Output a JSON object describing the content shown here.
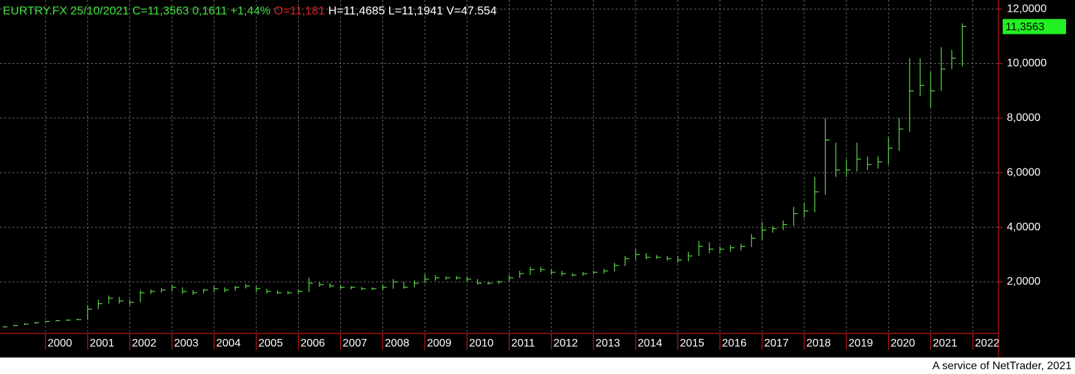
{
  "chart_data": {
    "type": "ohlc",
    "header": [
      {
        "text": "EURTRY.FX 25/10/2021 C=11,3563 0,1611 +1,44%",
        "color": "#3ee03e"
      },
      {
        "text": "O=11,181",
        "color": "#e41e1e"
      },
      {
        "text": "H=11,4685 L=11,1941 V=47.554",
        "color": "#ffffff"
      }
    ],
    "last_price": {
      "value": 11.3563,
      "label": "11,3563"
    },
    "footer": "A service of NetTrader, 2021",
    "color": "#5fe04a",
    "grid": true,
    "xlim": [
      1998.92,
      2022.61
    ],
    "xticks": [
      2000,
      2001,
      2002,
      2003,
      2004,
      2005,
      2006,
      2007,
      2008,
      2009,
      2010,
      2011,
      2012,
      2013,
      2014,
      2015,
      2016,
      2017,
      2018,
      2019,
      2020,
      2021,
      2022
    ],
    "ylim": [
      0.11,
      12.33
    ],
    "yticks": [
      {
        "value": 2,
        "label": "2,0000"
      },
      {
        "value": 4,
        "label": "4,0000"
      },
      {
        "value": 6,
        "label": "6,0000"
      },
      {
        "value": 8,
        "label": "8,0000"
      },
      {
        "value": 10,
        "label": "10,0000"
      },
      {
        "value": 12,
        "label": "12,0000"
      }
    ],
    "x": [
      1999.0,
      1999.25,
      1999.5,
      1999.75,
      2000.0,
      2000.25,
      2000.5,
      2000.75,
      2001.0,
      2001.25,
      2001.5,
      2001.75,
      2002.0,
      2002.25,
      2002.5,
      2002.75,
      2003.0,
      2003.25,
      2003.5,
      2003.75,
      2004.0,
      2004.25,
      2004.5,
      2004.75,
      2005.0,
      2005.25,
      2005.5,
      2005.75,
      2006.0,
      2006.25,
      2006.5,
      2006.75,
      2007.0,
      2007.25,
      2007.5,
      2007.75,
      2008.0,
      2008.25,
      2008.5,
      2008.75,
      2009.0,
      2009.25,
      2009.5,
      2009.75,
      2010.0,
      2010.25,
      2010.5,
      2010.75,
      2011.0,
      2011.25,
      2011.5,
      2011.75,
      2012.0,
      2012.25,
      2012.5,
      2012.75,
      2013.0,
      2013.25,
      2013.5,
      2013.75,
      2014.0,
      2014.25,
      2014.5,
      2014.75,
      2015.0,
      2015.25,
      2015.5,
      2015.75,
      2016.0,
      2016.25,
      2016.5,
      2016.75,
      2017.0,
      2017.25,
      2017.5,
      2017.75,
      2018.0,
      2018.25,
      2018.5,
      2018.75,
      2019.0,
      2019.25,
      2019.5,
      2019.75,
      2020.0,
      2020.25,
      2020.5,
      2020.75,
      2021.0,
      2021.25,
      2021.5,
      2021.75
    ],
    "close": [
      0.35,
      0.4,
      0.45,
      0.5,
      0.55,
      0.58,
      0.6,
      0.62,
      1.0,
      1.2,
      1.4,
      1.3,
      1.25,
      1.6,
      1.65,
      1.7,
      1.8,
      1.65,
      1.6,
      1.7,
      1.75,
      1.7,
      1.8,
      1.85,
      1.75,
      1.65,
      1.6,
      1.6,
      1.65,
      1.95,
      1.9,
      1.85,
      1.8,
      1.8,
      1.75,
      1.75,
      1.8,
      2.0,
      1.8,
      1.95,
      2.1,
      2.15,
      2.15,
      2.15,
      2.1,
      1.95,
      1.95,
      2.0,
      2.15,
      2.3,
      2.45,
      2.45,
      2.35,
      2.3,
      2.25,
      2.3,
      2.35,
      2.4,
      2.6,
      2.85,
      3.0,
      2.9,
      2.9,
      2.85,
      2.8,
      2.95,
      3.3,
      3.2,
      3.2,
      3.25,
      3.3,
      3.6,
      3.9,
      3.95,
      4.1,
      4.5,
      4.6,
      5.3,
      7.2,
      6.1,
      6.1,
      6.5,
      6.3,
      6.4,
      6.9,
      7.6,
      9.0,
      9.2,
      9.0,
      9.8,
      10.2,
      11.36
    ],
    "high": [
      0.38,
      0.43,
      0.48,
      0.53,
      0.57,
      0.6,
      0.62,
      0.65,
      1.15,
      1.35,
      1.5,
      1.45,
      1.35,
      1.7,
      1.72,
      1.78,
      1.9,
      1.8,
      1.7,
      1.75,
      1.85,
      1.8,
      1.85,
      1.92,
      1.85,
      1.75,
      1.68,
      1.66,
      1.72,
      2.15,
      2.0,
      1.95,
      1.88,
      1.85,
      1.82,
      1.8,
      1.9,
      2.1,
      2.0,
      2.05,
      2.28,
      2.25,
      2.2,
      2.22,
      2.2,
      2.1,
      2.0,
      2.05,
      2.25,
      2.4,
      2.55,
      2.55,
      2.45,
      2.4,
      2.32,
      2.36,
      2.4,
      2.48,
      2.7,
      2.95,
      3.2,
      3.05,
      2.98,
      2.95,
      2.95,
      3.1,
      3.5,
      3.45,
      3.3,
      3.35,
      3.4,
      3.75,
      4.2,
      4.05,
      4.25,
      4.75,
      4.9,
      5.85,
      8.0,
      7.1,
      6.5,
      7.1,
      6.6,
      6.6,
      7.3,
      8.0,
      10.2,
      10.2,
      9.7,
      10.6,
      10.5,
      11.47
    ],
    "low": [
      0.33,
      0.37,
      0.42,
      0.47,
      0.52,
      0.55,
      0.57,
      0.59,
      0.6,
      1.0,
      1.2,
      1.2,
      1.15,
      1.25,
      1.55,
      1.6,
      1.65,
      1.55,
      1.52,
      1.58,
      1.62,
      1.62,
      1.68,
      1.76,
      1.62,
      1.58,
      1.55,
      1.55,
      1.58,
      1.62,
      1.82,
      1.78,
      1.74,
      1.72,
      1.7,
      1.7,
      1.7,
      1.75,
      1.75,
      1.8,
      1.95,
      2.05,
      2.08,
      2.08,
      2.0,
      1.9,
      1.9,
      1.92,
      2.02,
      2.15,
      2.25,
      2.35,
      2.25,
      2.22,
      2.2,
      2.22,
      2.28,
      2.3,
      2.38,
      2.58,
      2.8,
      2.82,
      2.84,
      2.78,
      2.7,
      2.75,
      2.95,
      3.05,
      3.05,
      3.1,
      3.15,
      3.28,
      3.55,
      3.8,
      3.9,
      4.05,
      4.35,
      4.55,
      5.2,
      5.85,
      5.85,
      6.05,
      6.1,
      6.15,
      6.3,
      6.8,
      7.5,
      8.8,
      8.4,
      9.0,
      9.8,
      9.9
    ]
  }
}
